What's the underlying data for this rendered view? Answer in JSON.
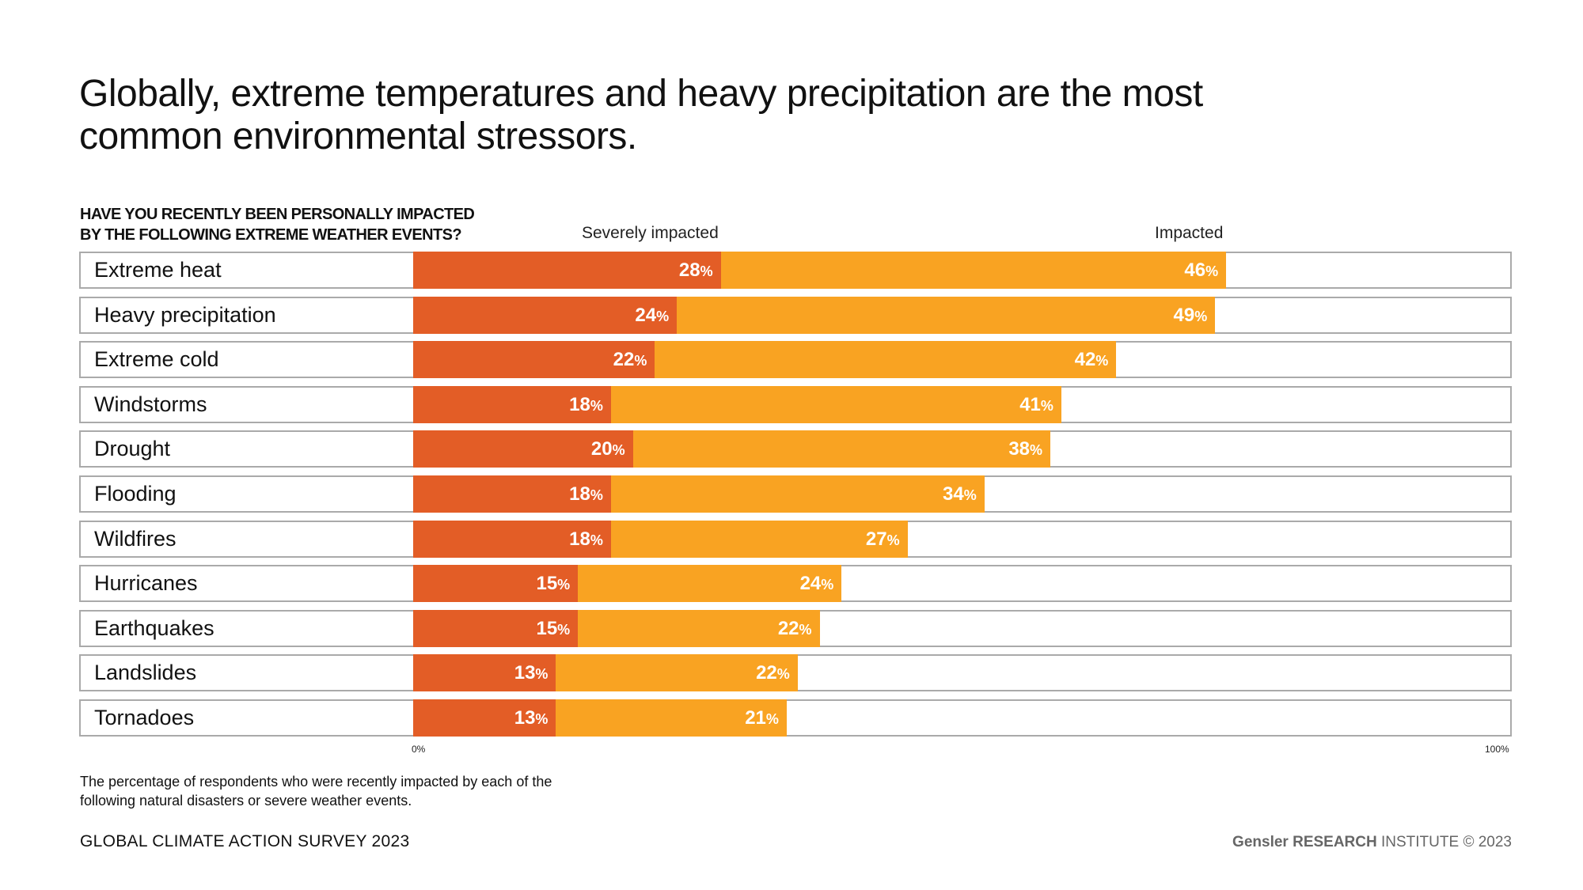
{
  "title_line1": "Globally, extreme temperatures and heavy precipitation are the most",
  "title_line2": "common environmental stressors.",
  "question_line1": "HAVE YOU RECENTLY BEEN PERSONALLY IMPACTED",
  "question_line2": "BY THE FOLLOWING EXTREME WEATHER EVENTS?",
  "note_line1": "The percentage of respondents who were recently impacted by each of the",
  "note_line2": "following natural disasters or severe weather events.",
  "footer_left": "GLOBAL CLIMATE ACTION SURVEY 2023",
  "footer_right": {
    "brand": "Gensler",
    "research": "RESEARCH",
    "rest": "INSTITUTE © 2023"
  },
  "chart_data": {
    "type": "bar",
    "orientation": "horizontal",
    "stacked": true,
    "categories": [
      "Extreme heat",
      "Heavy precipitation",
      "Extreme cold",
      "Windstorms",
      "Drought",
      "Flooding",
      "Wildfires",
      "Hurricanes",
      "Earthquakes",
      "Landslides",
      "Tornadoes"
    ],
    "series": [
      {
        "name": "Severely impacted",
        "color": "#E35D26",
        "values": [
          28,
          24,
          22,
          18,
          20,
          18,
          18,
          15,
          15,
          13,
          13
        ]
      },
      {
        "name": "Impacted",
        "color": "#F9A322",
        "values": [
          46,
          49,
          42,
          41,
          38,
          34,
          27,
          24,
          22,
          22,
          21
        ]
      }
    ],
    "xlim": [
      0,
      100
    ],
    "x_tick_labels": [
      "0%",
      "100%"
    ],
    "value_suffix": "%",
    "grid": false,
    "legend": "top"
  }
}
